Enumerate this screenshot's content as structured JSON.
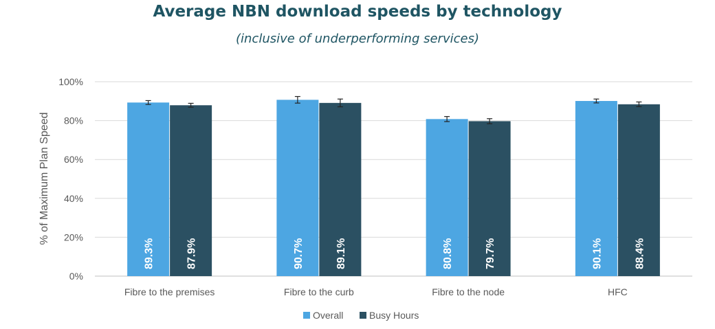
{
  "chart_data": {
    "type": "bar",
    "title": "Average NBN download speeds by technology",
    "subtitle": "(inclusive of underperforming services)",
    "ylabel": "% of Maximum Plan Speed",
    "xlabel": "",
    "ylim": [
      0,
      100
    ],
    "yticks": [
      0,
      20,
      40,
      60,
      80,
      100
    ],
    "ytick_labels": [
      "0%",
      "20%",
      "40%",
      "60%",
      "80%",
      "100%"
    ],
    "categories": [
      "Fibre to the premises",
      "Fibre to the curb",
      "Fibre to the node",
      "HFC"
    ],
    "series": [
      {
        "name": "Overall",
        "color": "#4da6e2",
        "values": [
          89.3,
          90.7,
          80.8,
          90.1
        ],
        "labels": [
          "89.3%",
          "90.7%",
          "80.8%",
          "90.1%"
        ],
        "error": [
          1.0,
          1.7,
          1.3,
          1.0
        ]
      },
      {
        "name": "Busy Hours",
        "color": "#2b5062",
        "values": [
          87.9,
          89.1,
          79.7,
          88.4
        ],
        "labels": [
          "87.9%",
          "89.1%",
          "79.7%",
          "88.4%"
        ],
        "error": [
          1.0,
          2.0,
          1.3,
          1.2
        ]
      }
    ],
    "grid": true,
    "legend": "bottom-center"
  }
}
